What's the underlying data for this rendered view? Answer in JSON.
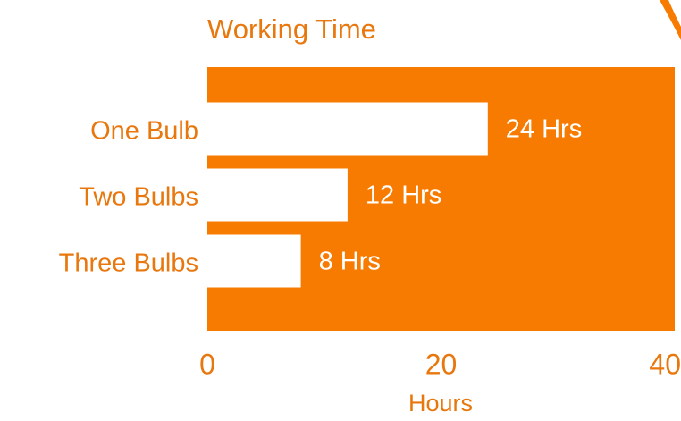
{
  "chart_data": {
    "type": "hbar",
    "title": "Working Time",
    "categories": [
      "One Bulb",
      "Two Bulbs",
      "Three Bulbs"
    ],
    "values": [
      24,
      12,
      8
    ],
    "value_labels": [
      "24 Hrs",
      "12 Hrs",
      "8 Hrs"
    ],
    "color": "#ffffff",
    "plot_background": "#f77b00",
    "text_color": "#e8770e",
    "x_label": "Hours",
    "xlim": [
      0,
      40
    ],
    "xticks": [
      0,
      20,
      40
    ],
    "grid": false
  }
}
